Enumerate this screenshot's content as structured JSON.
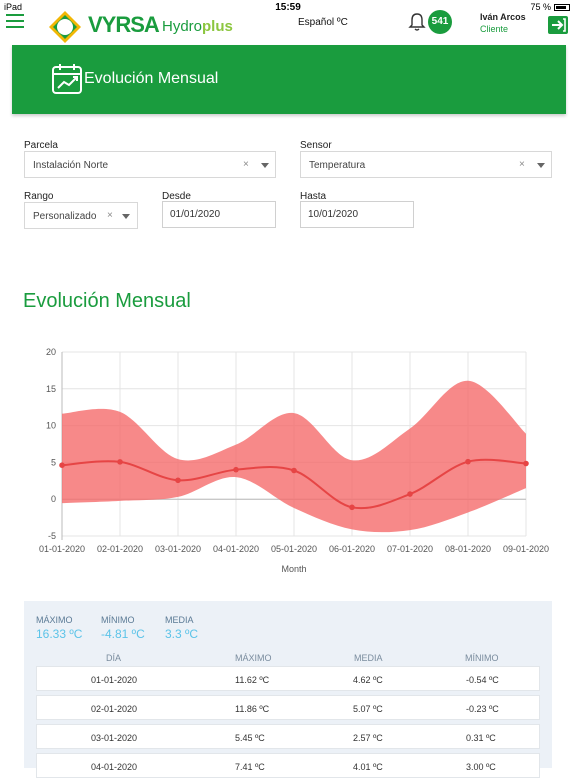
{
  "statusbar": {
    "device": "iPad",
    "time": "15:59",
    "battery": "75 %"
  },
  "header": {
    "brand": "VYRSA",
    "product_main": "Hydro",
    "product_accent": "plus",
    "language": "Español ºC",
    "notifications": "541",
    "user_name": "Iván Arcos",
    "user_role": "Cliente"
  },
  "banner": {
    "title": "Evolución Mensual"
  },
  "filters": {
    "parcela_label": "Parcela",
    "parcela_value": "Instalación Norte",
    "sensor_label": "Sensor",
    "sensor_value": "Temperatura",
    "rango_label": "Rango",
    "rango_value": "Personalizado",
    "desde_label": "Desde",
    "desde_value": "01/01/2020",
    "hasta_label": "Hasta",
    "hasta_value": "10/01/2020",
    "clear_symbol": "×"
  },
  "section_title": "Evolución Mensual",
  "chart_data": {
    "type": "area",
    "x": [
      "01-01-2020",
      "02-01-2020",
      "03-01-2020",
      "04-01-2020",
      "05-01-2020",
      "06-01-2020",
      "07-01-2020",
      "08-01-2020",
      "09-01-2020"
    ],
    "xlabel": "Month",
    "ylabel": "",
    "ylim": [
      -5,
      20
    ],
    "yticks": [
      -5,
      0,
      5,
      10,
      15,
      20
    ],
    "grid": true,
    "series": [
      {
        "name": "",
        "role": "media",
        "values": [
          4.62,
          5.07,
          2.57,
          4.01,
          3.9,
          -1.1,
          0.7,
          5.1,
          4.85
        ]
      },
      {
        "name": "",
        "role": "max",
        "values": [
          11.62,
          11.86,
          5.45,
          7.41,
          11.7,
          5.3,
          9.6,
          16.1,
          8.9
        ]
      },
      {
        "name": "",
        "role": "min",
        "values": [
          -0.54,
          -0.23,
          0.31,
          3.0,
          -1.2,
          -4.1,
          -4.2,
          -1.8,
          1.5
        ]
      }
    ],
    "colors": {
      "band": "#f56b6b",
      "line": "#e64545",
      "grid": "#e4e4e4"
    }
  },
  "summary": {
    "max_label": "MÁXIMO",
    "max_value": "16.33 ºC",
    "min_label": "MÍNIMO",
    "min_value": "-4.81 ºC",
    "avg_label": "MEDIA",
    "avg_value": "3.3 ºC"
  },
  "table": {
    "headers": [
      "DÍA",
      "MÁXIMO",
      "MEDIA",
      "MÍNIMO"
    ],
    "rows": [
      [
        "01-01-2020",
        "11.62 ºC",
        "4.62 ºC",
        "-0.54 ºC"
      ],
      [
        "02-01-2020",
        "11.86 ºC",
        "5.07 ºC",
        "-0.23 ºC"
      ],
      [
        "03-01-2020",
        "5.45 ºC",
        "2.57 ºC",
        "0.31 ºC"
      ],
      [
        "04-01-2020",
        "7.41 ºC",
        "4.01 ºC",
        "3.00 ºC"
      ]
    ]
  },
  "colors": {
    "brand_green": "#1a9c3e",
    "accent_cyan": "#5bc3e8"
  }
}
